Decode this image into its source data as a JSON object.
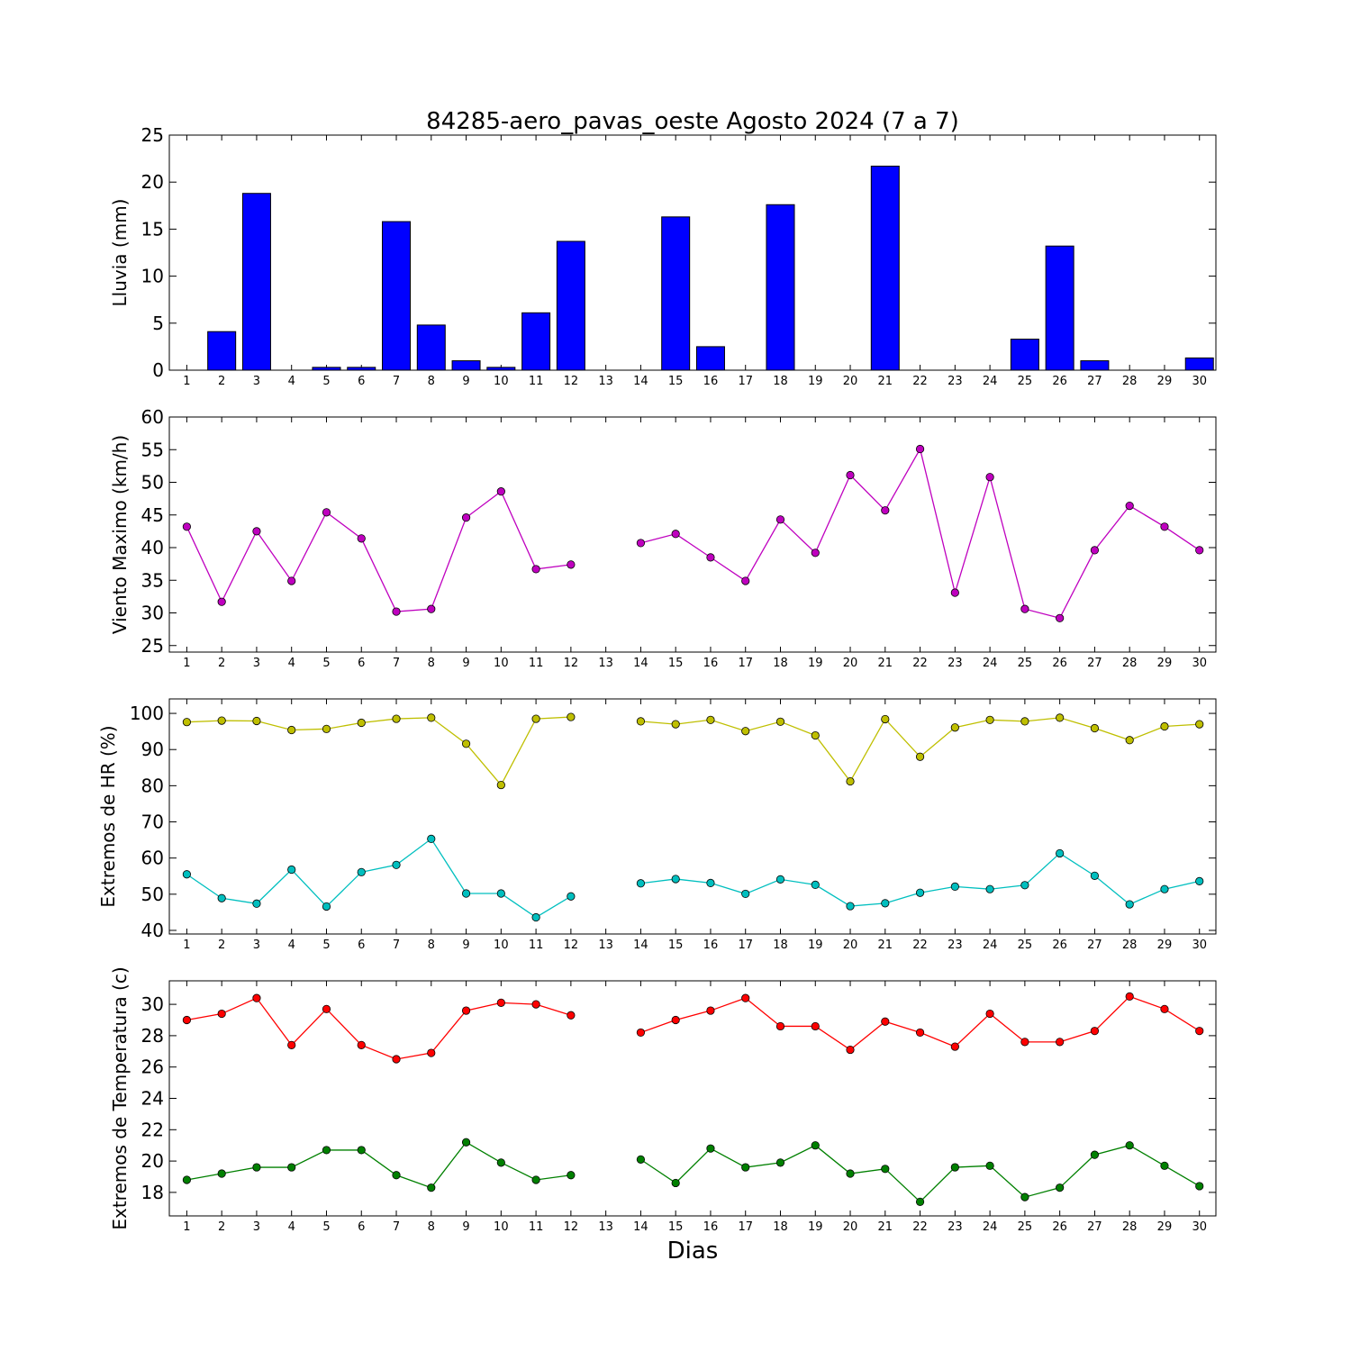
{
  "chart_data": [
    {
      "type": "bar",
      "title": "84285-aero_pavas_oeste Agosto 2024  (7 a 7)",
      "xlabel": "",
      "ylabel": "Lluvia (mm)",
      "ylim": [
        0,
        25
      ],
      "yticks": [
        0,
        5,
        10,
        15,
        20,
        25
      ],
      "categories": [
        "1",
        "2",
        "3",
        "4",
        "5",
        "6",
        "7",
        "8",
        "9",
        "10",
        "11",
        "12",
        "13",
        "14",
        "15",
        "16",
        "17",
        "18",
        "19",
        "20",
        "21",
        "22",
        "23",
        "24",
        "25",
        "26",
        "27",
        "28",
        "29",
        "30"
      ],
      "grid": false,
      "series": [
        {
          "color": "#0000ff",
          "values": [
            0,
            4.1,
            18.8,
            0,
            0.3,
            0.3,
            15.8,
            4.8,
            1.0,
            0.3,
            6.1,
            13.7,
            0,
            0,
            16.3,
            2.5,
            0,
            17.6,
            0,
            0,
            21.7,
            0,
            0,
            0,
            3.3,
            13.2,
            1.0,
            0,
            0,
            1.3
          ]
        }
      ]
    },
    {
      "type": "line",
      "xlabel": "",
      "ylabel": "Viento Maximo (km/h)",
      "ylim": [
        24,
        60
      ],
      "yticks": [
        25,
        30,
        35,
        40,
        45,
        50,
        55,
        60
      ],
      "categories": [
        "1",
        "2",
        "3",
        "4",
        "5",
        "6",
        "7",
        "8",
        "9",
        "10",
        "11",
        "12",
        "13",
        "14",
        "15",
        "16",
        "17",
        "18",
        "19",
        "20",
        "21",
        "22",
        "23",
        "24",
        "25",
        "26",
        "27",
        "28",
        "29",
        "30"
      ],
      "grid": false,
      "series": [
        {
          "color": "#bf00bf",
          "values": [
            43.2,
            31.7,
            42.5,
            34.9,
            45.4,
            41.4,
            30.2,
            30.6,
            44.6,
            48.6,
            36.7,
            37.4,
            null,
            40.7,
            42.1,
            38.5,
            34.9,
            44.3,
            39.2,
            51.1,
            45.7,
            55.1,
            33.1,
            50.8,
            30.6,
            29.2,
            39.6,
            46.4,
            43.2,
            39.6
          ]
        }
      ]
    },
    {
      "type": "line",
      "xlabel": "",
      "ylabel": "Extremos de HR (%)",
      "ylim": [
        39,
        104
      ],
      "yticks": [
        40,
        50,
        60,
        70,
        80,
        90,
        100
      ],
      "categories": [
        "1",
        "2",
        "3",
        "4",
        "5",
        "6",
        "7",
        "8",
        "9",
        "10",
        "11",
        "12",
        "13",
        "14",
        "15",
        "16",
        "17",
        "18",
        "19",
        "20",
        "21",
        "22",
        "23",
        "24",
        "25",
        "26",
        "27",
        "28",
        "29",
        "30"
      ],
      "grid": false,
      "series": [
        {
          "color": "#bfbf00",
          "values": [
            97.6,
            98.0,
            97.9,
            95.4,
            95.7,
            97.4,
            98.5,
            98.8,
            91.6,
            80.2,
            98.5,
            99.0,
            null,
            97.8,
            97.0,
            98.2,
            95.1,
            97.7,
            93.9,
            81.2,
            98.4,
            88.0,
            96.1,
            98.2,
            97.8,
            98.8,
            95.9,
            92.6,
            96.4,
            97.0
          ]
        },
        {
          "color": "#00bfbf",
          "values": [
            55.5,
            48.9,
            47.4,
            56.8,
            46.6,
            56.1,
            58.1,
            65.3,
            50.2,
            50.2,
            43.6,
            49.4,
            null,
            53.0,
            54.2,
            53.1,
            50.1,
            54.1,
            52.6,
            46.7,
            47.5,
            50.4,
            52.1,
            51.4,
            52.5,
            61.3,
            55.1,
            47.2,
            51.4,
            53.6
          ]
        }
      ]
    },
    {
      "type": "line",
      "xlabel": "Dias",
      "ylabel": "Extremos de Temperatura (c)",
      "ylim": [
        16.5,
        31.5
      ],
      "yticks": [
        18,
        20,
        22,
        24,
        26,
        28,
        30
      ],
      "categories": [
        "1",
        "2",
        "3",
        "4",
        "5",
        "6",
        "7",
        "8",
        "9",
        "10",
        "11",
        "12",
        "13",
        "14",
        "15",
        "16",
        "17",
        "18",
        "19",
        "20",
        "21",
        "22",
        "23",
        "24",
        "25",
        "26",
        "27",
        "28",
        "29",
        "30"
      ],
      "grid": false,
      "series": [
        {
          "color": "#ff0000",
          "values": [
            29.0,
            29.4,
            30.4,
            27.4,
            29.7,
            27.4,
            26.5,
            26.9,
            29.6,
            30.1,
            30.0,
            29.3,
            null,
            28.2,
            29.0,
            29.6,
            30.4,
            28.6,
            28.6,
            27.1,
            28.9,
            28.2,
            27.3,
            29.4,
            27.6,
            27.6,
            28.3,
            30.5,
            29.7,
            28.3
          ]
        },
        {
          "color": "#008000",
          "values": [
            18.8,
            19.2,
            19.6,
            19.6,
            20.7,
            20.7,
            19.1,
            18.3,
            21.2,
            19.9,
            18.8,
            19.1,
            null,
            20.1,
            18.6,
            20.8,
            19.6,
            19.9,
            21.0,
            19.2,
            19.5,
            17.4,
            19.6,
            19.7,
            17.7,
            18.3,
            20.4,
            21.0,
            19.7,
            18.4
          ]
        }
      ]
    }
  ]
}
